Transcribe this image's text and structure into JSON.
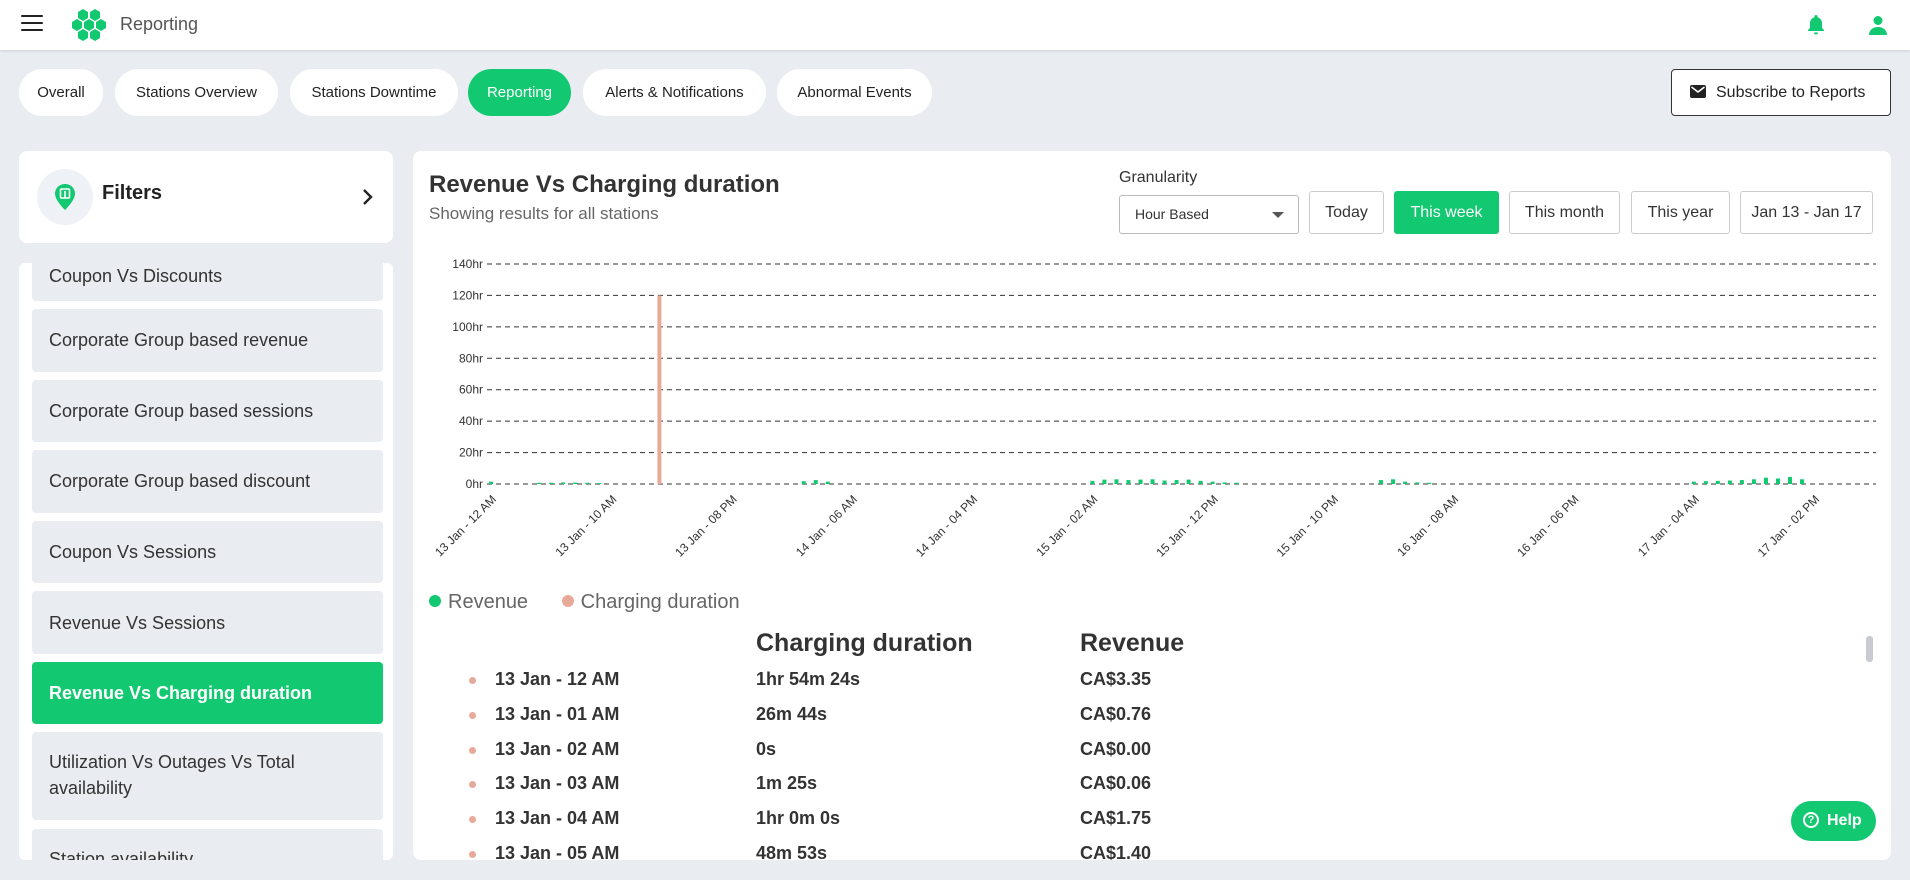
{
  "header": {
    "title": "Reporting",
    "menu_icon": "hamburger-menu-icon",
    "logo_icon": "hexagon-cluster-logo",
    "bell_icon": "bell-icon",
    "user_icon": "user-icon"
  },
  "tabs": [
    {
      "label": "Overall"
    },
    {
      "label": "Stations Overview"
    },
    {
      "label": "Stations Downtime"
    },
    {
      "label": "Reporting",
      "active": true
    },
    {
      "label": "Alerts & Notifications"
    },
    {
      "label": "Abnormal Events"
    }
  ],
  "subscribe": {
    "label": "Subscribe to Reports"
  },
  "filters": {
    "title": "Filters"
  },
  "sidebar": {
    "items": [
      {
        "label": "Coupon Vs Discounts"
      },
      {
        "label": "Corporate Group based revenue"
      },
      {
        "label": "Corporate Group based sessions"
      },
      {
        "label": "Corporate Group based discount"
      },
      {
        "label": "Coupon Vs Sessions"
      },
      {
        "label": "Revenue Vs Sessions"
      },
      {
        "label": "Revenue Vs Charging duration",
        "active": true
      },
      {
        "label": "Utilization Vs Outages Vs Total availability"
      },
      {
        "label": "Station availability"
      }
    ]
  },
  "report": {
    "title": "Revenue Vs Charging duration",
    "subtitle": "Showing results for all stations",
    "granularity_label": "Granularity",
    "granularity_value": "Hour Based",
    "range_buttons": [
      "Today",
      "This week",
      "This month",
      "This year"
    ],
    "active_range": "This week",
    "date_range": "Jan 13 - Jan 17"
  },
  "colors": {
    "accent": "#12c870",
    "revenue": "#12c870",
    "duration": "#e8aa98"
  },
  "chart_data": {
    "type": "bar",
    "y_ticks": [
      "0hr",
      "20hr",
      "40hr",
      "60hr",
      "80hr",
      "100hr",
      "120hr",
      "140hr"
    ],
    "ylim": [
      0,
      140
    ],
    "grid": true,
    "x_tick_labels": [
      "13 Jan - 12 AM",
      "13 Jan - 10 AM",
      "13 Jan - 08 PM",
      "14 Jan - 06 AM",
      "14 Jan - 04 PM",
      "15 Jan - 02 AM",
      "15 Jan - 12 PM",
      "15 Jan - 10 PM",
      "16 Jan - 08 AM",
      "16 Jan - 06 PM",
      "17 Jan - 04 AM",
      "17 Jan - 02 PM"
    ],
    "hours_count": 112,
    "legend": [
      "Revenue",
      "Charging duration"
    ],
    "legend_position": "bottom-left",
    "series": [
      {
        "name": "Charging duration",
        "points": [
          [
            14,
            120
          ]
        ]
      },
      {
        "name": "Revenue",
        "points": [
          [
            0,
            1.5
          ],
          [
            4,
            0.8
          ],
          [
            5,
            0.8
          ],
          [
            6,
            1.0
          ],
          [
            7,
            0.9
          ],
          [
            8,
            0.8
          ],
          [
            9,
            0.6
          ],
          [
            26,
            1.8
          ],
          [
            27,
            2.5
          ],
          [
            28,
            1.5
          ],
          [
            50,
            2.0
          ],
          [
            51,
            2.8
          ],
          [
            52,
            3.0
          ],
          [
            53,
            2.5
          ],
          [
            54,
            2.8
          ],
          [
            55,
            3.0
          ],
          [
            56,
            2.2
          ],
          [
            57,
            2.5
          ],
          [
            58,
            2.8
          ],
          [
            59,
            2.0
          ],
          [
            60,
            1.5
          ],
          [
            61,
            1.0
          ],
          [
            62,
            0.8
          ],
          [
            74,
            2.5
          ],
          [
            75,
            3.0
          ],
          [
            76,
            1.5
          ],
          [
            77,
            1.0
          ],
          [
            78,
            0.8
          ],
          [
            100,
            1.5
          ],
          [
            101,
            1.8
          ],
          [
            102,
            2.0
          ],
          [
            103,
            2.2
          ],
          [
            104,
            2.5
          ],
          [
            105,
            3.0
          ],
          [
            106,
            4.0
          ],
          [
            107,
            3.5
          ],
          [
            108,
            4.5
          ],
          [
            109,
            3.0
          ]
        ]
      }
    ]
  },
  "table": {
    "headers": [
      "Charging duration",
      "Revenue"
    ],
    "rows": [
      {
        "date": "13 Jan - 12 AM",
        "duration": "1hr 54m 24s",
        "revenue": "CA$3.35"
      },
      {
        "date": "13 Jan - 01 AM",
        "duration": "26m 44s",
        "revenue": "CA$0.76"
      },
      {
        "date": "13 Jan - 02 AM",
        "duration": "0s",
        "revenue": "CA$0.00"
      },
      {
        "date": "13 Jan - 03 AM",
        "duration": "1m 25s",
        "revenue": "CA$0.06"
      },
      {
        "date": "13 Jan - 04 AM",
        "duration": "1hr 0m 0s",
        "revenue": "CA$1.75"
      },
      {
        "date": "13 Jan - 05 AM",
        "duration": "48m 53s",
        "revenue": "CA$1.40"
      }
    ]
  },
  "help": {
    "label": "Help"
  }
}
